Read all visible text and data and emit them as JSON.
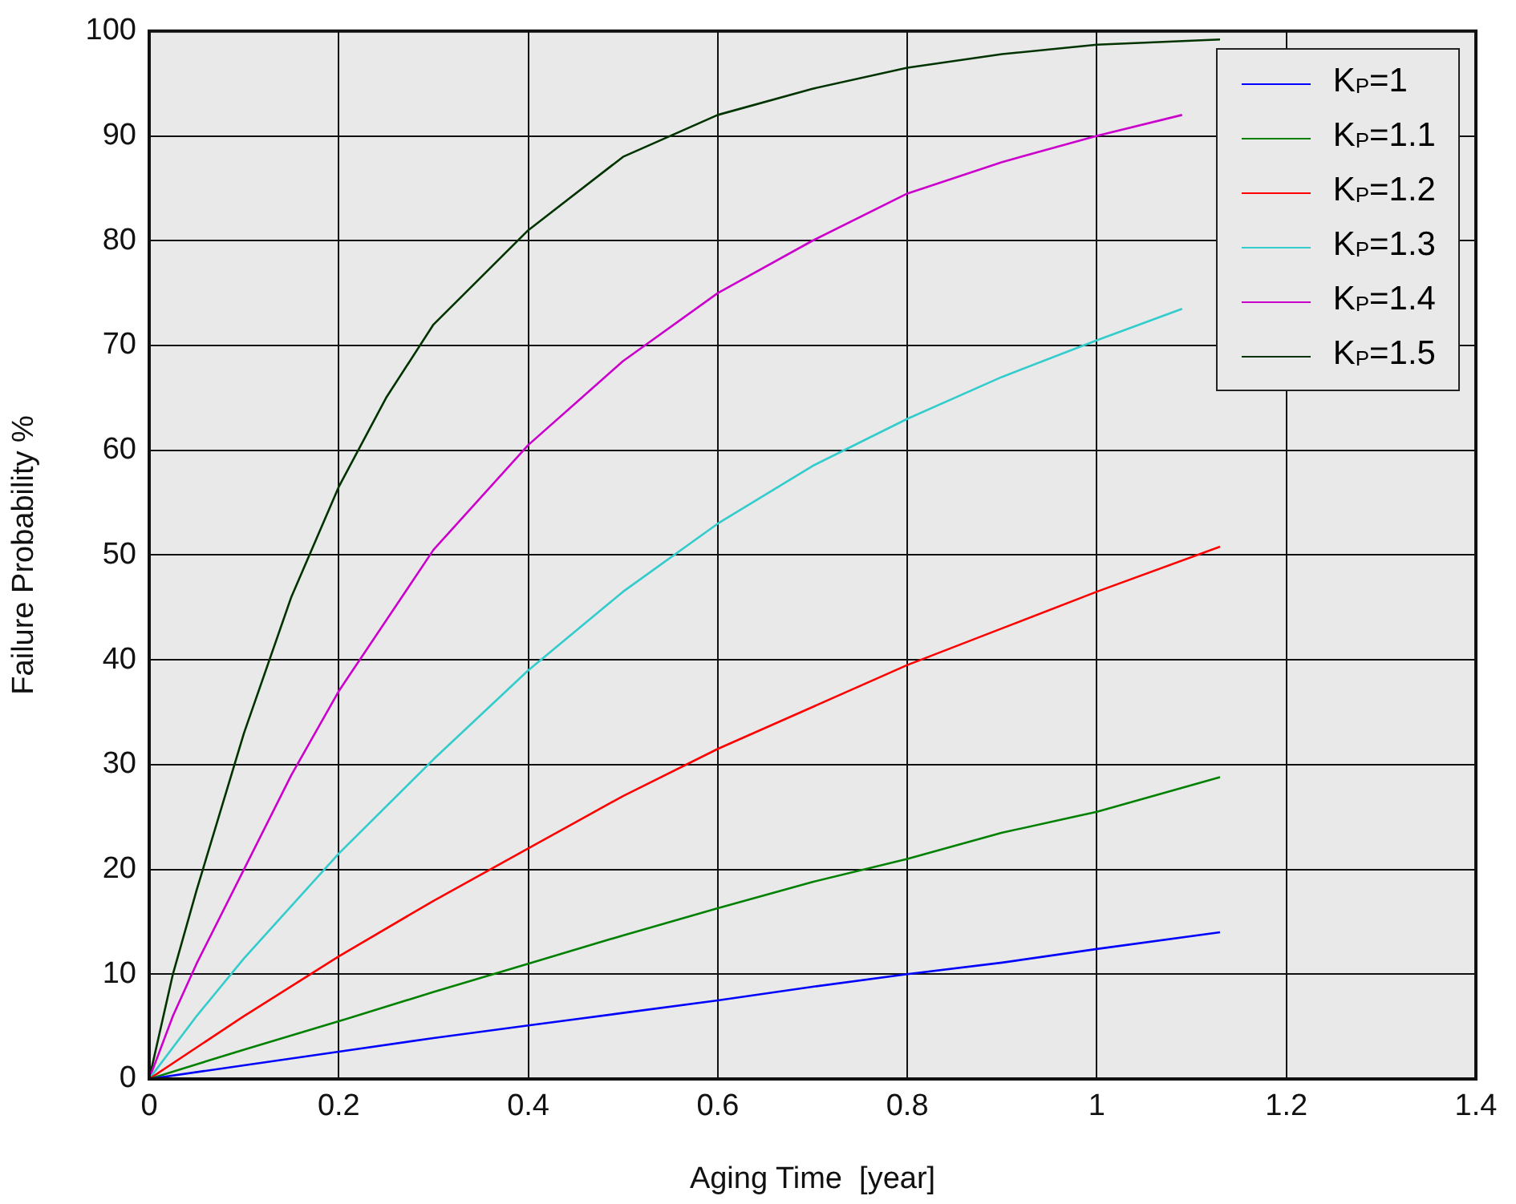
{
  "chart_data": {
    "type": "line",
    "xlabel": "Aging Time  [year]",
    "ylabel": "Failure Probability %",
    "xlim": [
      0,
      1.4
    ],
    "xticks": [
      0,
      0.2,
      0.4,
      0.6,
      0.8,
      1,
      1.2,
      1.4
    ],
    "ylim": [
      0,
      100
    ],
    "yticks": [
      0,
      10,
      20,
      30,
      40,
      50,
      60,
      70,
      80,
      90,
      100
    ],
    "grid": true,
    "legend": "top right",
    "marker": "none",
    "line_style": "solid",
    "series": [
      {
        "name": "K$_{P}$=1",
        "color": "#0000ff",
        "x": [
          0,
          0.1,
          0.2,
          0.3,
          0.4,
          0.5,
          0.6,
          0.7,
          0.8,
          0.9,
          1.0,
          1.13
        ],
        "values": [
          0,
          1.3,
          2.6,
          3.9,
          5.1,
          6.3,
          7.5,
          8.8,
          10,
          11.1,
          12.4,
          14
        ]
      },
      {
        "name": "K$_{P}$=1.1",
        "color": "#008000",
        "x": [
          0,
          0.1,
          0.2,
          0.3,
          0.4,
          0.5,
          0.6,
          0.7,
          0.8,
          0.9,
          1.0,
          1.13
        ],
        "values": [
          0,
          2.8,
          5.5,
          8.3,
          11,
          13.7,
          16.3,
          18.8,
          21,
          23.5,
          25.5,
          28.8
        ]
      },
      {
        "name": "K$_{P}$=1.2",
        "color": "#ff0000",
        "x": [
          0,
          0.1,
          0.2,
          0.3,
          0.4,
          0.5,
          0.6,
          0.7,
          0.8,
          0.9,
          1.0,
          1.13
        ],
        "values": [
          0,
          6,
          11.7,
          17,
          22,
          27,
          31.5,
          35.5,
          39.5,
          43,
          46.5,
          50.8
        ]
      },
      {
        "name": "K$_{P}$=1.3",
        "color": "#33cccc",
        "x": [
          0,
          0.05,
          0.1,
          0.2,
          0.3,
          0.4,
          0.5,
          0.6,
          0.7,
          0.8,
          0.9,
          1.0,
          1.09
        ],
        "values": [
          0,
          6,
          11.5,
          21.5,
          30.5,
          39,
          46.5,
          53,
          58.5,
          63,
          67,
          70.5,
          73.5
        ]
      },
      {
        "name": "K$_{P}$=1.4",
        "color": "#cc00cc",
        "x": [
          0,
          0.025,
          0.05,
          0.1,
          0.15,
          0.2,
          0.3,
          0.4,
          0.5,
          0.6,
          0.7,
          0.8,
          0.9,
          1.0,
          1.09
        ],
        "values": [
          0,
          6,
          11,
          20,
          29,
          37,
          50.5,
          60.5,
          68.5,
          75,
          80,
          84.5,
          87.5,
          90,
          92
        ]
      },
      {
        "name": "K$_{P}$=1.5",
        "color": "#003300",
        "x": [
          0,
          0.025,
          0.05,
          0.1,
          0.15,
          0.2,
          0.25,
          0.3,
          0.4,
          0.5,
          0.6,
          0.7,
          0.8,
          0.9,
          1.0,
          1.13
        ],
        "values": [
          0,
          10,
          18,
          33,
          46,
          56.5,
          65,
          72,
          81,
          88,
          92,
          94.5,
          96.5,
          97.8,
          98.7,
          99.2
        ]
      }
    ]
  }
}
